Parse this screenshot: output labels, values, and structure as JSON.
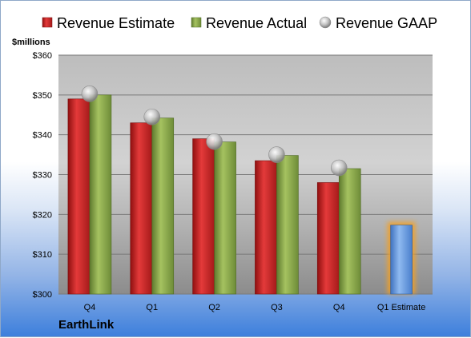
{
  "chart_data": {
    "type": "bar",
    "ylabel": "$millions",
    "ylim": [
      300,
      360
    ],
    "yticks": [
      "$300",
      "$310",
      "$320",
      "$330",
      "$340",
      "$350",
      "$360"
    ],
    "categories": [
      "Q4",
      "Q1",
      "Q2",
      "Q3",
      "Q4",
      "Q1 Estimate"
    ],
    "series": [
      {
        "name": "Revenue Estimate",
        "kind": "bar",
        "color": "#d42a2a",
        "values": [
          349,
          343,
          339,
          333.5,
          328,
          null
        ]
      },
      {
        "name": "Revenue Actual",
        "kind": "bar",
        "color": "#8fb04e",
        "values": [
          350,
          344.2,
          338.2,
          334.8,
          331.5,
          null
        ]
      },
      {
        "name": "Revenue GAAP",
        "kind": "marker",
        "color": "#b8b8b8",
        "values": [
          350.3,
          344.5,
          338.3,
          335,
          331.7,
          null
        ]
      },
      {
        "name": "Q1 Estimate",
        "kind": "bar",
        "color": "#6b9fe0",
        "values": [
          null,
          null,
          null,
          null,
          null,
          317.3
        ]
      }
    ],
    "legend_position": "top",
    "grid": true
  },
  "footer": {
    "company": "EarthLink"
  }
}
